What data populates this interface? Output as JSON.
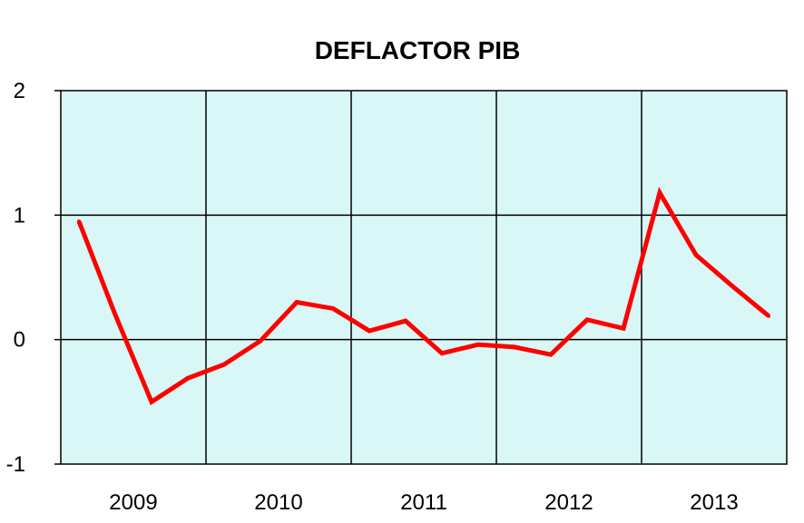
{
  "chart_data": {
    "type": "line",
    "title": "DEFLACTOR PIB",
    "xlabel": "",
    "ylabel": "",
    "categories": [
      "2009",
      "2010",
      "2011",
      "2012",
      "2013"
    ],
    "x": [
      "2009Q1",
      "2009Q2",
      "2009Q3",
      "2009Q4",
      "2010Q1",
      "2010Q2",
      "2010Q3",
      "2010Q4",
      "2011Q1",
      "2011Q2",
      "2011Q3",
      "2011Q4",
      "2012Q1",
      "2012Q2",
      "2012Q3",
      "2012Q4",
      "2013Q1",
      "2013Q2",
      "2013Q3",
      "2013Q4"
    ],
    "series": [
      {
        "values": [
          0.95,
          0.2,
          -0.5,
          -0.31,
          -0.2,
          -0.01,
          0.3,
          0.25,
          0.07,
          0.15,
          -0.11,
          -0.04,
          -0.06,
          -0.12,
          0.16,
          0.09,
          1.18,
          0.68,
          0.43,
          0.19
        ],
        "color": "#ff0000"
      }
    ],
    "ylim": [
      -1,
      2
    ],
    "yticks": [
      "-1",
      "0",
      "1",
      "2"
    ],
    "grid": true,
    "plot_background": "#d9f7f7",
    "legend": "none"
  }
}
